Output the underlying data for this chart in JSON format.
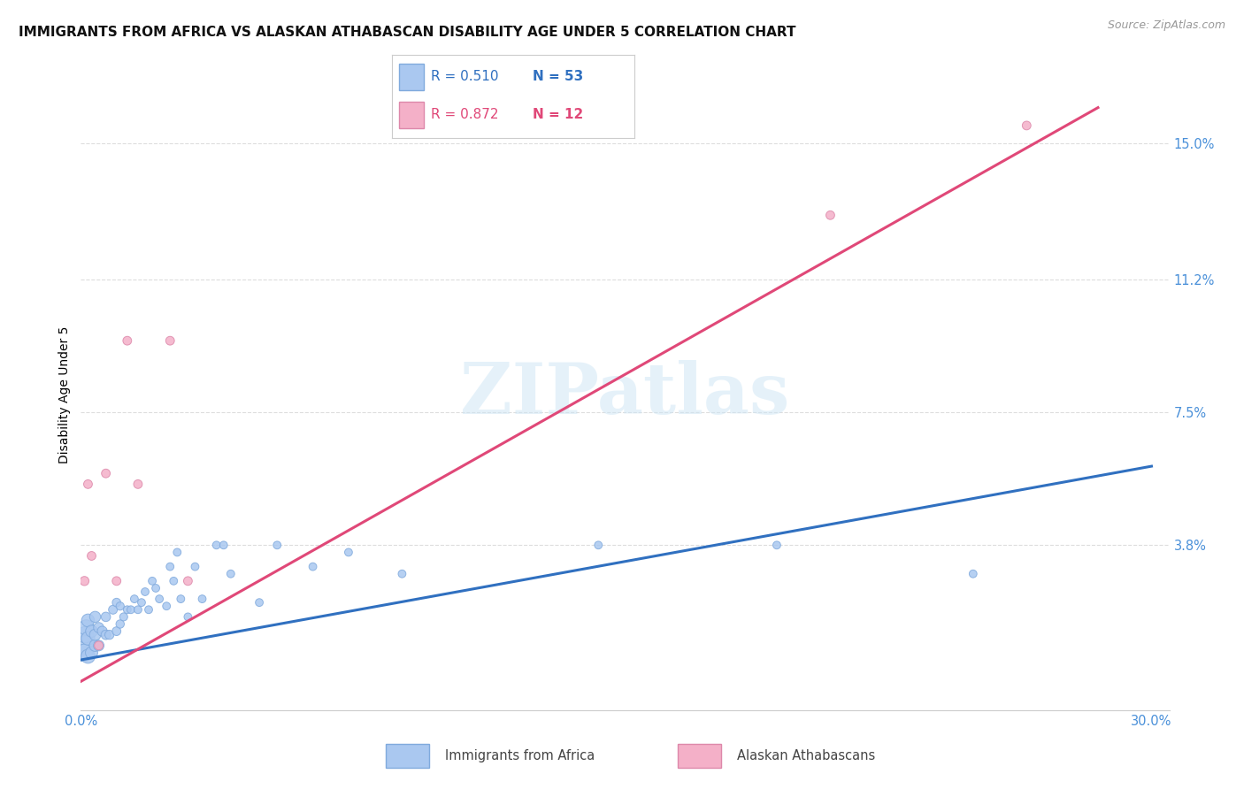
{
  "title": "IMMIGRANTS FROM AFRICA VS ALASKAN ATHABASCAN DISABILITY AGE UNDER 5 CORRELATION CHART",
  "source": "Source: ZipAtlas.com",
  "ylabel": "Disability Age Under 5",
  "xlim": [
    0.0,
    0.305
  ],
  "ylim": [
    -0.008,
    0.168
  ],
  "ytick_vals": [
    0.038,
    0.075,
    0.112,
    0.15
  ],
  "ytick_labels": [
    "3.8%",
    "7.5%",
    "11.2%",
    "15.0%"
  ],
  "xtick_vals": [
    0.0,
    0.1,
    0.2,
    0.3
  ],
  "xtick_labels": [
    "0.0%",
    "",
    "",
    "30.0%"
  ],
  "grid_color": "#dddddd",
  "bg_color": "#ffffff",
  "watermark": "ZIPatlas",
  "s1_face": "#aac8f0",
  "s1_edge": "#80aadd",
  "s2_face": "#f4b0c8",
  "s2_edge": "#dd88aa",
  "line1_color": "#3070c0",
  "line2_color": "#e04878",
  "tick_color": "#4a90d9",
  "R1": 0.51,
  "N1": 53,
  "R2": 0.872,
  "N2": 12,
  "blue_x": [
    0.0005,
    0.001,
    0.0012,
    0.0015,
    0.002,
    0.002,
    0.002,
    0.003,
    0.003,
    0.004,
    0.004,
    0.004,
    0.005,
    0.005,
    0.006,
    0.007,
    0.007,
    0.008,
    0.009,
    0.01,
    0.01,
    0.011,
    0.011,
    0.012,
    0.013,
    0.014,
    0.015,
    0.016,
    0.017,
    0.018,
    0.019,
    0.02,
    0.021,
    0.022,
    0.024,
    0.025,
    0.026,
    0.027,
    0.028,
    0.03,
    0.032,
    0.034,
    0.038,
    0.04,
    0.042,
    0.05,
    0.055,
    0.065,
    0.075,
    0.09,
    0.145,
    0.195,
    0.25
  ],
  "blue_y": [
    0.01,
    0.008,
    0.013,
    0.015,
    0.007,
    0.012,
    0.017,
    0.008,
    0.014,
    0.01,
    0.013,
    0.018,
    0.01,
    0.015,
    0.014,
    0.013,
    0.018,
    0.013,
    0.02,
    0.014,
    0.022,
    0.016,
    0.021,
    0.018,
    0.02,
    0.02,
    0.023,
    0.02,
    0.022,
    0.025,
    0.02,
    0.028,
    0.026,
    0.023,
    0.021,
    0.032,
    0.028,
    0.036,
    0.023,
    0.018,
    0.032,
    0.023,
    0.038,
    0.038,
    0.03,
    0.022,
    0.038,
    0.032,
    0.036,
    0.03,
    0.038,
    0.038,
    0.03
  ],
  "blue_s": [
    250,
    200,
    180,
    160,
    130,
    120,
    110,
    100,
    95,
    90,
    85,
    80,
    75,
    70,
    65,
    60,
    58,
    55,
    52,
    50,
    48,
    46,
    44,
    42,
    40,
    40,
    40,
    40,
    40,
    40,
    40,
    40,
    40,
    40,
    40,
    40,
    40,
    40,
    40,
    40,
    40,
    40,
    40,
    40,
    40,
    40,
    40,
    40,
    40,
    40,
    40,
    40,
    40
  ],
  "pink_x": [
    0.001,
    0.002,
    0.003,
    0.005,
    0.007,
    0.01,
    0.013,
    0.016,
    0.025,
    0.03,
    0.21,
    0.265
  ],
  "pink_y": [
    0.028,
    0.055,
    0.035,
    0.01,
    0.058,
    0.028,
    0.095,
    0.055,
    0.095,
    0.028,
    0.13,
    0.155
  ],
  "pink_s": [
    55,
    50,
    50,
    50,
    50,
    50,
    50,
    50,
    50,
    50,
    50,
    50
  ],
  "line1_x0": 0.0,
  "line1_y0": 0.006,
  "line1_x1": 0.3,
  "line1_y1": 0.06,
  "line2_x0": 0.0,
  "line2_y0": 0.0,
  "line2_x1": 0.285,
  "line2_y1": 0.16
}
